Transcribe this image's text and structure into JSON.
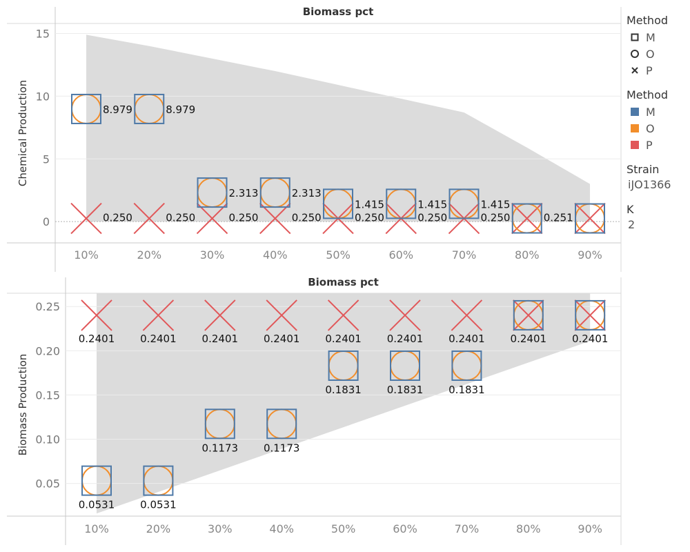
{
  "legend": {
    "shape_title": "Method",
    "shape_items": [
      {
        "label": "M",
        "icon": "square-shape-icon"
      },
      {
        "label": "O",
        "icon": "circle-shape-icon"
      },
      {
        "label": "P",
        "icon": "x-shape-icon"
      }
    ],
    "color_title": "Method",
    "color_items": [
      {
        "label": "M",
        "color": "#4e79a7"
      },
      {
        "label": "O",
        "color": "#f28e2b"
      },
      {
        "label": "P",
        "color": "#e15759"
      }
    ],
    "strain_title": "Strain",
    "strain_value": "iJO1366",
    "k_title": "K",
    "k_value": "2"
  },
  "chart_data": [
    {
      "type": "scatter",
      "title": "Biomass pct",
      "ylabel": "Chemical Production",
      "categories": [
        "10%",
        "20%",
        "30%",
        "40%",
        "50%",
        "60%",
        "70%",
        "80%",
        "90%"
      ],
      "yticks": [
        "0",
        "5",
        "10",
        "15"
      ],
      "ylim": [
        -1.7,
        15.8
      ],
      "grid": true,
      "series": [
        {
          "name": "M",
          "values": [
            8.979,
            8.979,
            2.313,
            2.313,
            1.415,
            1.415,
            1.415,
            0.251,
            0.251
          ]
        },
        {
          "name": "O",
          "values": [
            8.979,
            8.979,
            2.313,
            2.313,
            1.415,
            1.415,
            1.415,
            0.251,
            0.251
          ]
        },
        {
          "name": "P",
          "values": [
            0.25,
            0.25,
            0.25,
            0.25,
            0.25,
            0.25,
            0.25,
            0.251,
            0.251
          ]
        }
      ],
      "mo_labels": [
        "8.979",
        "8.979",
        "2.313",
        "2.313",
        "1.415",
        "1.415",
        "1.415",
        "",
        ""
      ],
      "p_labels": [
        "0.250",
        "0.250",
        "0.250",
        "0.250",
        "0.250",
        "0.250",
        "0.250",
        "0.251",
        ""
      ],
      "band": {
        "x": [
          1,
          2,
          3,
          4,
          5,
          6,
          7,
          8,
          9
        ],
        "upper": [
          14.9,
          14.0,
          13.0,
          12.0,
          10.9,
          9.8,
          8.7,
          5.9,
          3.0
        ],
        "lower": [
          0,
          0,
          0,
          0,
          0,
          0,
          0,
          0,
          0
        ]
      }
    },
    {
      "type": "scatter",
      "title": "Biomass pct",
      "ylabel": "Biomass Production",
      "categories": [
        "10%",
        "20%",
        "30%",
        "40%",
        "50%",
        "60%",
        "70%",
        "80%",
        "90%"
      ],
      "yticks": [
        "0.05",
        "0.10",
        "0.15",
        "0.20",
        "0.25"
      ],
      "ylim": [
        0.013,
        0.265
      ],
      "grid": true,
      "series": [
        {
          "name": "M",
          "values": [
            0.0531,
            0.0531,
            0.1173,
            0.1173,
            0.1831,
            0.1831,
            0.1831,
            0.2401,
            0.2401
          ]
        },
        {
          "name": "O",
          "values": [
            0.0531,
            0.0531,
            0.1173,
            0.1173,
            0.1831,
            0.1831,
            0.1831,
            0.2401,
            0.2401
          ]
        },
        {
          "name": "P",
          "values": [
            0.2401,
            0.2401,
            0.2401,
            0.2401,
            0.2401,
            0.2401,
            0.2401,
            0.2401,
            0.2401
          ]
        }
      ],
      "mo_labels": [
        "0.0531",
        "0.0531",
        "0.1173",
        "0.1173",
        "0.1831",
        "0.1831",
        "0.1831",
        "",
        ""
      ],
      "p_labels": [
        "0.2401",
        "0.2401",
        "0.2401",
        "0.2401",
        "0.2401",
        "0.2401",
        "0.2401",
        "0.2401",
        "0.2401"
      ],
      "band": {
        "x": [
          1,
          9
        ],
        "upper": [
          0.265,
          0.265
        ],
        "lower": [
          0.016,
          0.211
        ]
      }
    }
  ]
}
